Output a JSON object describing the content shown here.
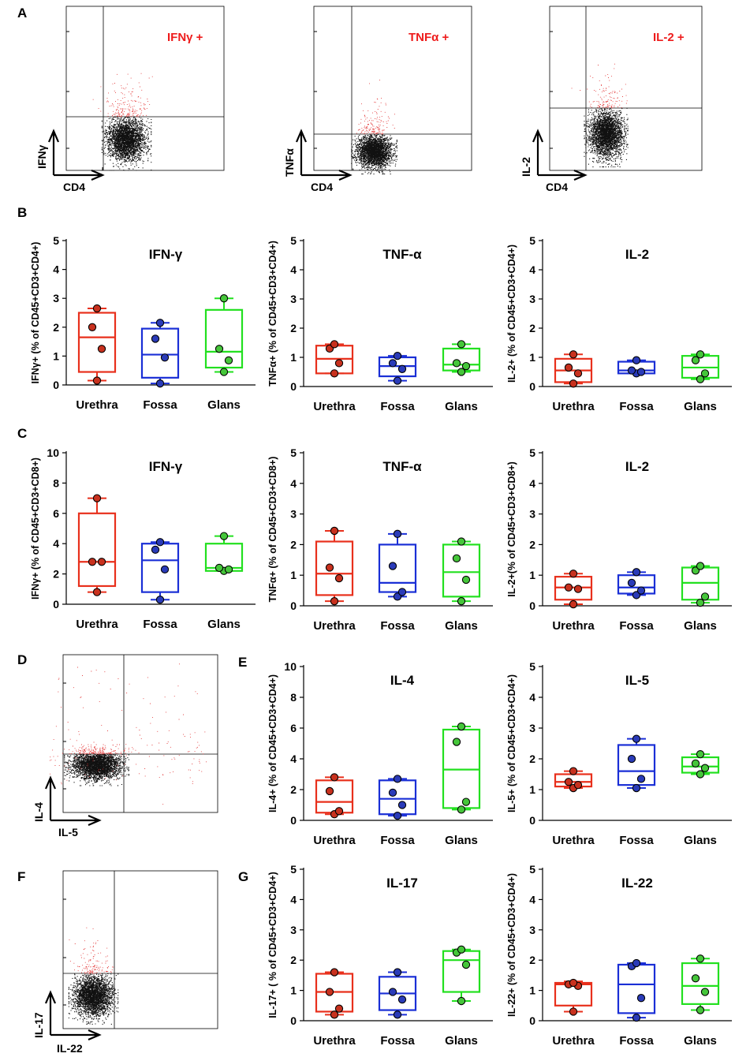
{
  "panel_labels": {
    "A": "A",
    "B": "B",
    "C": "C",
    "D": "D",
    "E": "E",
    "F": "F",
    "G": "G"
  },
  "colors": {
    "urethra": "#e8301c",
    "fossa": "#1a2fd6",
    "glans": "#22e01f",
    "urethra_dot": "#c8311e",
    "fossa_dot": "#2a3bb8",
    "glans_dot": "#45c63a",
    "gate_text": "#ee1c1c",
    "events": "#111111",
    "positive_events": "#e23030"
  },
  "flow_plots": {
    "ifng": {
      "x_label": "CD4",
      "y_label": "IFNγ",
      "gate_label": "IFNγ +"
    },
    "tnfa": {
      "x_label": "CD4",
      "y_label": "TNFα",
      "gate_label": "TNFα +"
    },
    "il2": {
      "x_label": "CD4",
      "y_label": "IL-2",
      "gate_label": "IL-2 +"
    },
    "il4il5": {
      "x_label": "IL-5",
      "y_label": "IL-4"
    },
    "il17il22": {
      "x_label": "IL-22",
      "y_label": "IL-17"
    }
  },
  "chart_data": [
    {
      "id": "B1",
      "type": "box",
      "title": "IFN-γ",
      "ylabel": "IFNγ+ (% of CD45+CD3+CD4+)",
      "ylim": [
        0,
        5
      ],
      "yticks": [
        "0",
        "1",
        "2",
        "3",
        "4",
        "5"
      ],
      "categories": [
        "Urethra",
        "Fossa",
        "Glans"
      ],
      "series": [
        {
          "name": "Urethra",
          "box": [
            0.45,
            1.65,
            2.5
          ],
          "whisker": [
            0.15,
            2.65
          ],
          "points": [
            0.15,
            1.25,
            2.0,
            2.65
          ]
        },
        {
          "name": "Fossa",
          "box": [
            0.25,
            1.05,
            1.95
          ],
          "whisker": [
            0.05,
            2.15
          ],
          "points": [
            0.05,
            0.95,
            1.6,
            2.15
          ]
        },
        {
          "name": "Glans",
          "box": [
            0.6,
            1.15,
            2.6
          ],
          "whisker": [
            0.45,
            3.0
          ],
          "points": [
            0.45,
            0.85,
            1.25,
            3.0
          ]
        }
      ]
    },
    {
      "id": "B2",
      "type": "box",
      "title": "TNF-α",
      "ylabel": "TNFα+ (% of CD45+CD3+CD4+)",
      "ylim": [
        0,
        5
      ],
      "yticks": [
        "0",
        "1",
        "2",
        "3",
        "4",
        "5"
      ],
      "categories": [
        "Urethra",
        "Fossa",
        "Glans"
      ],
      "series": [
        {
          "name": "Urethra",
          "box": [
            0.45,
            0.95,
            1.4
          ],
          "whisker": [
            0.45,
            1.45
          ],
          "points": [
            0.45,
            0.8,
            1.3,
            1.45
          ]
        },
        {
          "name": "Fossa",
          "box": [
            0.35,
            0.7,
            1.0
          ],
          "whisker": [
            0.2,
            1.05
          ],
          "points": [
            0.2,
            0.6,
            0.8,
            1.05
          ]
        },
        {
          "name": "Glans",
          "box": [
            0.55,
            0.75,
            1.3
          ],
          "whisker": [
            0.5,
            1.45
          ],
          "points": [
            0.5,
            0.7,
            0.8,
            1.45
          ]
        }
      ]
    },
    {
      "id": "B3",
      "type": "box",
      "title": "IL-2",
      "ylabel": "IL-2+ (% of CD45+CD3+CD4+)",
      "ylim": [
        0,
        5
      ],
      "yticks": [
        "0",
        "1",
        "2",
        "3",
        "4",
        "5"
      ],
      "categories": [
        "Urethra",
        "Fossa",
        "Glans"
      ],
      "series": [
        {
          "name": "Urethra",
          "box": [
            0.15,
            0.55,
            0.95
          ],
          "whisker": [
            0.1,
            1.1
          ],
          "points": [
            0.1,
            0.45,
            0.65,
            1.1
          ]
        },
        {
          "name": "Fossa",
          "box": [
            0.45,
            0.55,
            0.85
          ],
          "whisker": [
            0.45,
            0.9
          ],
          "points": [
            0.45,
            0.5,
            0.55,
            0.9
          ]
        },
        {
          "name": "Glans",
          "box": [
            0.3,
            0.65,
            1.05
          ],
          "whisker": [
            0.25,
            1.1
          ],
          "points": [
            0.25,
            0.45,
            0.9,
            1.1
          ]
        }
      ]
    },
    {
      "id": "C1",
      "type": "box",
      "title": "IFN-γ",
      "ylabel": "IFNγ+ (% of  CD45+CD3+CD8+)",
      "ylim": [
        0,
        10
      ],
      "yticks": [
        "0",
        "2",
        "4",
        "6",
        "8",
        "10"
      ],
      "categories": [
        "Urethra",
        "Fossa",
        "Glans"
      ],
      "series": [
        {
          "name": "Urethra",
          "box": [
            1.2,
            2.8,
            6.0
          ],
          "whisker": [
            0.8,
            7.0
          ],
          "points": [
            0.8,
            2.8,
            2.8,
            7.0
          ]
        },
        {
          "name": "Fossa",
          "box": [
            0.8,
            2.9,
            4.0
          ],
          "whisker": [
            0.3,
            4.1
          ],
          "points": [
            0.3,
            2.3,
            3.6,
            4.1
          ]
        },
        {
          "name": "Glans",
          "box": [
            2.2,
            2.4,
            4.0
          ],
          "whisker": [
            2.2,
            4.5
          ],
          "points": [
            2.2,
            2.3,
            2.4,
            4.5
          ]
        }
      ]
    },
    {
      "id": "C2",
      "type": "box",
      "title": "TNF-α",
      "ylabel": "TNFα+ (% of CD45+CD3+CD8+)",
      "ylim": [
        0,
        5
      ],
      "yticks": [
        "0",
        "1",
        "2",
        "3",
        "4",
        "5"
      ],
      "categories": [
        "Urethra",
        "Fossa",
        "Glans"
      ],
      "series": [
        {
          "name": "Urethra",
          "box": [
            0.35,
            1.05,
            2.1
          ],
          "whisker": [
            0.15,
            2.45
          ],
          "points": [
            0.15,
            0.9,
            1.25,
            2.45
          ]
        },
        {
          "name": "Fossa",
          "box": [
            0.45,
            0.75,
            2.0
          ],
          "whisker": [
            0.3,
            2.35
          ],
          "points": [
            0.3,
            0.45,
            1.3,
            2.35
          ]
        },
        {
          "name": "Glans",
          "box": [
            0.3,
            1.1,
            2.0
          ],
          "whisker": [
            0.15,
            2.1
          ],
          "points": [
            0.15,
            0.85,
            1.55,
            2.1
          ]
        }
      ]
    },
    {
      "id": "C3",
      "type": "box",
      "title": "IL-2",
      "ylabel": "IL-2+(% of CD45+CD3+CD8+)",
      "ylim": [
        0,
        5
      ],
      "yticks": [
        "0",
        "1",
        "2",
        "3",
        "4",
        "5"
      ],
      "categories": [
        "Urethra",
        "Fossa",
        "Glans"
      ],
      "series": [
        {
          "name": "Urethra",
          "box": [
            0.2,
            0.6,
            0.95
          ],
          "whisker": [
            0.05,
            1.05
          ],
          "points": [
            0.05,
            0.55,
            0.6,
            1.05
          ]
        },
        {
          "name": "Fossa",
          "box": [
            0.4,
            0.6,
            1.0
          ],
          "whisker": [
            0.35,
            1.1
          ],
          "points": [
            0.35,
            0.5,
            0.75,
            1.1
          ]
        },
        {
          "name": "Glans",
          "box": [
            0.2,
            0.75,
            1.25
          ],
          "whisker": [
            0.1,
            1.3
          ],
          "points": [
            0.1,
            0.3,
            1.15,
            1.3
          ]
        }
      ]
    },
    {
      "id": "E1",
      "type": "box",
      "title": "IL-4",
      "ylabel": "IL-4+ (% of CD45+CD3+CD4+)",
      "ylim": [
        0,
        10
      ],
      "yticks": [
        "0",
        "2",
        "4",
        "6",
        "8",
        "10"
      ],
      "categories": [
        "Urethra",
        "Fossa",
        "Glans"
      ],
      "series": [
        {
          "name": "Urethra",
          "box": [
            0.5,
            1.2,
            2.6
          ],
          "whisker": [
            0.4,
            2.8
          ],
          "points": [
            0.4,
            0.6,
            1.9,
            2.8
          ]
        },
        {
          "name": "Fossa",
          "box": [
            0.4,
            1.4,
            2.6
          ],
          "whisker": [
            0.3,
            2.7
          ],
          "points": [
            0.3,
            1.0,
            1.8,
            2.7
          ]
        },
        {
          "name": "Glans",
          "box": [
            0.8,
            3.3,
            5.9
          ],
          "whisker": [
            0.7,
            6.1
          ],
          "points": [
            0.7,
            1.2,
            5.1,
            6.1
          ]
        }
      ]
    },
    {
      "id": "E2",
      "type": "box",
      "title": "IL-5",
      "ylabel": "IL-5+ (% of CD45+CD3+CD4+)",
      "ylim": [
        0,
        5
      ],
      "yticks": [
        "0",
        "1",
        "2",
        "3",
        "4",
        "5"
      ],
      "categories": [
        "Urethra",
        "Fossa",
        "Glans"
      ],
      "series": [
        {
          "name": "Urethra",
          "box": [
            1.1,
            1.25,
            1.5
          ],
          "whisker": [
            1.05,
            1.6
          ],
          "points": [
            1.05,
            1.15,
            1.25,
            1.6
          ]
        },
        {
          "name": "Fossa",
          "box": [
            1.15,
            1.6,
            2.45
          ],
          "whisker": [
            1.05,
            2.65
          ],
          "points": [
            1.05,
            1.35,
            2.0,
            2.65
          ]
        },
        {
          "name": "Glans",
          "box": [
            1.55,
            1.75,
            2.05
          ],
          "whisker": [
            1.5,
            2.15
          ],
          "points": [
            1.5,
            1.7,
            1.85,
            2.15
          ]
        }
      ]
    },
    {
      "id": "G1",
      "type": "box",
      "title": "IL-17",
      "ylabel": "IL-17+ ( % of CD45+CD3+CD4+)",
      "ylim": [
        0,
        5
      ],
      "yticks": [
        "0",
        "1",
        "2",
        "3",
        "4",
        "5"
      ],
      "categories": [
        "Urethra",
        "Fossa",
        "Glans"
      ],
      "series": [
        {
          "name": "Urethra",
          "box": [
            0.3,
            0.95,
            1.55
          ],
          "whisker": [
            0.2,
            1.6
          ],
          "points": [
            0.2,
            0.4,
            0.95,
            1.6
          ]
        },
        {
          "name": "Fossa",
          "box": [
            0.35,
            0.9,
            1.45
          ],
          "whisker": [
            0.2,
            1.6
          ],
          "points": [
            0.2,
            0.7,
            0.95,
            1.6
          ]
        },
        {
          "name": "Glans",
          "box": [
            0.95,
            2.0,
            2.3
          ],
          "whisker": [
            0.65,
            2.35
          ],
          "points": [
            0.65,
            1.85,
            2.25,
            2.35
          ]
        }
      ]
    },
    {
      "id": "G2",
      "type": "box",
      "title": "IL-22",
      "ylabel": "IL-22+ (% of CD45+CD3+CD4+)",
      "ylim": [
        0,
        5
      ],
      "yticks": [
        "0",
        "1",
        "2",
        "3",
        "4",
        "5"
      ],
      "categories": [
        "Urethra",
        "Fossa",
        "Glans"
      ],
      "series": [
        {
          "name": "Urethra",
          "box": [
            0.5,
            1.2,
            1.25
          ],
          "whisker": [
            0.3,
            1.3
          ],
          "points": [
            0.3,
            1.15,
            1.2,
            1.25
          ]
        },
        {
          "name": "Fossa",
          "box": [
            0.25,
            1.2,
            1.85
          ],
          "whisker": [
            0.1,
            1.9
          ],
          "points": [
            0.1,
            0.75,
            1.8,
            1.9
          ]
        },
        {
          "name": "Glans",
          "box": [
            0.55,
            1.15,
            1.9
          ],
          "whisker": [
            0.35,
            2.05
          ],
          "points": [
            0.35,
            0.95,
            1.4,
            2.05
          ]
        }
      ]
    }
  ]
}
